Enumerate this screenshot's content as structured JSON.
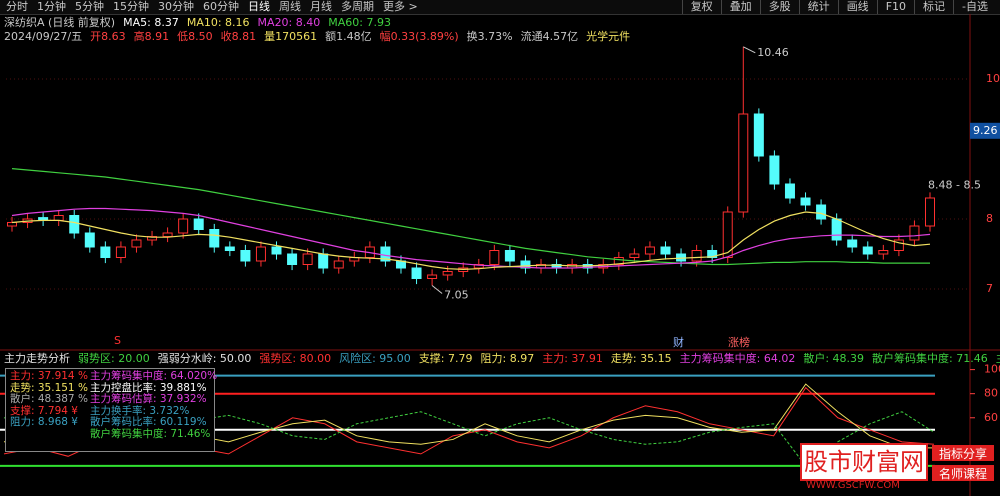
{
  "toolbar": {
    "periods": [
      "分时",
      "1分钟",
      "5分钟",
      "15分钟",
      "30分钟",
      "60分钟",
      "日线",
      "周线",
      "月线",
      "多周期",
      "更多 >"
    ],
    "active": "#ffffff",
    "color": "#c8c8c8",
    "buttons": [
      "复权",
      "叠加",
      "多股",
      "统计",
      "画线",
      "F10",
      "标记",
      "-自选"
    ]
  },
  "header": {
    "items": [
      {
        "text": "深纺织A (日线 前复权)",
        "color": "#c8c8c8"
      },
      {
        "text": "MA5: 8.37",
        "color": "#ffffff"
      },
      {
        "text": "MA10: 8.16",
        "color": "#f0e060"
      },
      {
        "text": "MA20: 8.40",
        "color": "#e040e0"
      },
      {
        "text": "MA60: 7.93",
        "color": "#40d040"
      }
    ]
  },
  "info": {
    "items": [
      {
        "text": "2024/09/27/五",
        "color": "#c8c8c8"
      },
      {
        "text": "开8.63",
        "color": "#ff4040"
      },
      {
        "text": "高8.91",
        "color": "#ff4040"
      },
      {
        "text": "低8.50",
        "color": "#ff4040"
      },
      {
        "text": "收8.81",
        "color": "#ff4040"
      },
      {
        "text": "量170561",
        "color": "#f0e060"
      },
      {
        "text": "额1.48亿",
        "color": "#c8c8c8"
      },
      {
        "text": "幅0.33(3.89%)",
        "color": "#ff4040"
      },
      {
        "text": "换3.73%",
        "color": "#c8c8c8"
      },
      {
        "text": "流通4.57亿",
        "color": "#c8c8c8"
      },
      {
        "text": "光学元件",
        "color": "#f0e060"
      }
    ]
  },
  "events": [
    "S",
    "财",
    "涨榜"
  ],
  "indicator_header": {
    "items": [
      {
        "text": "主力走势分析",
        "color": "#e0e0e0"
      },
      {
        "text": "弱势区: 20.00",
        "color": "#40d040"
      },
      {
        "text": "强弱分水岭: 50.00",
        "color": "#e0e0e0"
      },
      {
        "text": "强势区: 80.00",
        "color": "#ff3030"
      },
      {
        "text": "风险区: 95.00",
        "color": "#3aa0c0"
      },
      {
        "text": "支撑: 7.79",
        "color": "#f0e060"
      },
      {
        "text": "阻力: 8.97",
        "color": "#f0e060"
      },
      {
        "text": "主力: 37.91",
        "color": "#ff3030"
      },
      {
        "text": "走势: 35.15",
        "color": "#f0e060"
      },
      {
        "text": "主力筹码集中度: 64.02",
        "color": "#e040e0"
      },
      {
        "text": "散户: 48.39",
        "color": "#40d040"
      },
      {
        "text": "散户筹码集中度: 71.46",
        "color": "#40d040"
      },
      {
        "text": "主力换手率:",
        "color": "#40d040"
      }
    ]
  },
  "tooltip": {
    "left": [
      {
        "text": "主力: 37.914 %",
        "color": "#ff3030"
      },
      {
        "text": "走势: 35.151 %",
        "color": "#f0e060"
      },
      {
        "text": "散户: 48.387 %",
        "color": "#aaaaaa"
      },
      {
        "text": "支撑: 7.794 ¥",
        "color": "#ff3030"
      },
      {
        "text": "阻力: 8.968 ¥",
        "color": "#3aa0c0"
      }
    ],
    "right": [
      {
        "text": "主力筹码集中度: 64.020%",
        "color": "#e040e0"
      },
      {
        "text": "主力控盘比率: 39.881%",
        "color": "#ffffff"
      },
      {
        "text": "主力筹码估算: 37.932%",
        "color": "#e040e0"
      },
      {
        "text": "主力换手率: 3.732%",
        "color": "#3aa0c0"
      },
      {
        "text": "散户筹码比率: 60.119%",
        "color": "#3aa0c0"
      },
      {
        "text": "散户筹码集中度: 71.46%",
        "color": "#40d040"
      }
    ]
  },
  "watermark": {
    "title": "股市财富网",
    "url": "WWW.GSCFW.COM",
    "tags": [
      "指标分享",
      "名师课程"
    ]
  },
  "chart_data": [
    {
      "type": "candlestick",
      "ylim": [
        6.2,
        10.5
      ],
      "yticks": [
        7,
        8,
        10
      ],
      "grid": true,
      "up_color": "#ff3030",
      "down_color": "#54fcfc",
      "open": [
        7.9,
        7.95,
        8.02,
        7.98,
        8.05,
        7.8,
        7.6,
        7.45,
        7.6,
        7.7,
        7.75,
        7.8,
        8.0,
        7.85,
        7.6,
        7.55,
        7.4,
        7.6,
        7.5,
        7.35,
        7.5,
        7.3,
        7.4,
        7.45,
        7.6,
        7.4,
        7.3,
        7.15,
        7.2,
        7.25,
        7.3,
        7.35,
        7.55,
        7.4,
        7.3,
        7.35,
        7.3,
        7.35,
        7.3,
        7.35,
        7.45,
        7.5,
        7.6,
        7.5,
        7.4,
        7.55,
        7.45,
        8.1,
        9.5,
        8.9,
        8.5,
        8.3,
        8.2,
        8.0,
        7.7,
        7.6,
        7.5,
        7.55,
        7.7,
        7.9
      ],
      "high": [
        8.03,
        8.08,
        8.1,
        8.13,
        8.13,
        7.88,
        7.68,
        7.68,
        7.78,
        7.83,
        7.88,
        8.08,
        8.08,
        7.93,
        7.68,
        7.63,
        7.68,
        7.68,
        7.58,
        7.58,
        7.58,
        7.48,
        7.53,
        7.68,
        7.68,
        7.48,
        7.38,
        7.28,
        7.33,
        7.38,
        7.43,
        7.63,
        7.63,
        7.48,
        7.43,
        7.43,
        7.43,
        7.43,
        7.43,
        7.53,
        7.58,
        7.68,
        7.68,
        7.58,
        7.63,
        7.63,
        8.18,
        10.46,
        9.58,
        8.98,
        8.58,
        8.38,
        8.28,
        8.08,
        7.78,
        7.68,
        7.63,
        7.78,
        7.98,
        8.38
      ],
      "low": [
        7.82,
        7.87,
        7.9,
        7.9,
        7.72,
        7.52,
        7.37,
        7.37,
        7.52,
        7.62,
        7.67,
        7.72,
        7.77,
        7.52,
        7.47,
        7.32,
        7.32,
        7.42,
        7.27,
        7.27,
        7.22,
        7.22,
        7.32,
        7.37,
        7.32,
        7.22,
        7.07,
        7.05,
        7.12,
        7.17,
        7.22,
        7.27,
        7.32,
        7.22,
        7.22,
        7.22,
        7.22,
        7.22,
        7.22,
        7.27,
        7.37,
        7.42,
        7.42,
        7.32,
        7.32,
        7.37,
        7.37,
        8.02,
        8.82,
        8.42,
        8.22,
        8.12,
        7.92,
        7.62,
        7.52,
        7.42,
        7.42,
        7.47,
        7.62,
        7.82
      ],
      "close": [
        7.95,
        8.0,
        7.98,
        8.05,
        7.8,
        7.6,
        7.45,
        7.6,
        7.7,
        7.75,
        7.8,
        8.0,
        7.85,
        7.6,
        7.55,
        7.4,
        7.6,
        7.5,
        7.35,
        7.5,
        7.3,
        7.4,
        7.45,
        7.6,
        7.4,
        7.3,
        7.15,
        7.2,
        7.25,
        7.3,
        7.35,
        7.55,
        7.4,
        7.3,
        7.35,
        7.3,
        7.35,
        7.3,
        7.35,
        7.45,
        7.5,
        7.6,
        7.5,
        7.4,
        7.55,
        7.45,
        8.1,
        9.5,
        8.9,
        8.5,
        8.3,
        8.2,
        8.0,
        7.7,
        7.6,
        7.5,
        7.55,
        7.7,
        7.9,
        8.3
      ],
      "lines": [
        {
          "color": "#40d040",
          "values": [
            8.72,
            8.7,
            8.68,
            8.66,
            8.64,
            8.62,
            8.6,
            8.57,
            8.54,
            8.51,
            8.48,
            8.45,
            8.42,
            8.38,
            8.34,
            8.3,
            8.26,
            8.22,
            8.18,
            8.14,
            8.1,
            8.06,
            8.02,
            7.98,
            7.94,
            7.9,
            7.86,
            7.82,
            7.78,
            7.74,
            7.7,
            7.66,
            7.62,
            7.58,
            7.55,
            7.52,
            7.49,
            7.46,
            7.44,
            7.42,
            7.4,
            7.39,
            7.38,
            7.37,
            7.36,
            7.35,
            7.35,
            7.36,
            7.37,
            7.38,
            7.38,
            7.39,
            7.39,
            7.39,
            7.38,
            7.38,
            7.37,
            7.37,
            7.37,
            7.37
          ]
        },
        {
          "color": "#e040e0",
          "values": [
            8.05,
            8.08,
            8.1,
            8.12,
            8.14,
            8.15,
            8.15,
            8.14,
            8.13,
            8.12,
            8.1,
            8.08,
            8.05,
            8.0,
            7.95,
            7.9,
            7.85,
            7.8,
            7.75,
            7.7,
            7.65,
            7.6,
            7.55,
            7.52,
            7.48,
            7.45,
            7.42,
            7.4,
            7.38,
            7.36,
            7.34,
            7.33,
            7.32,
            7.31,
            7.3,
            7.3,
            7.3,
            7.31,
            7.32,
            7.33,
            7.34,
            7.35,
            7.36,
            7.37,
            7.38,
            7.4,
            7.46,
            7.55,
            7.62,
            7.68,
            7.72,
            7.74,
            7.76,
            7.77,
            7.77,
            7.76,
            7.75,
            7.75,
            7.76,
            7.78
          ]
        },
        {
          "color": "#f0e060",
          "values": [
            7.95,
            7.97,
            7.98,
            7.98,
            7.95,
            7.9,
            7.85,
            7.8,
            7.76,
            7.74,
            7.74,
            7.76,
            7.78,
            7.77,
            7.74,
            7.7,
            7.66,
            7.62,
            7.58,
            7.54,
            7.5,
            7.47,
            7.45,
            7.44,
            7.43,
            7.4,
            7.36,
            7.32,
            7.29,
            7.28,
            7.29,
            7.31,
            7.32,
            7.33,
            7.34,
            7.34,
            7.33,
            7.33,
            7.34,
            7.36,
            7.38,
            7.41,
            7.43,
            7.44,
            7.45,
            7.46,
            7.52,
            7.7,
            7.85,
            7.97,
            8.05,
            8.1,
            8.08,
            8.0,
            7.9,
            7.8,
            7.72,
            7.66,
            7.62,
            7.64
          ]
        }
      ],
      "cursor_value": 9.26,
      "annotation": "8.48 - 8.5"
    },
    {
      "type": "line",
      "ylim": [
        0,
        103
      ],
      "yticks": [
        100,
        80,
        60
      ],
      "reference_lines": [
        {
          "value": 95,
          "color": "#3aa0c0"
        },
        {
          "value": 80,
          "color": "#ff2020"
        },
        {
          "value": 50,
          "color": "#ffffff"
        },
        {
          "value": 20,
          "color": "#30e030"
        }
      ],
      "series": [
        {
          "color": "#ff3030",
          "dash": false,
          "values": [
            30,
            35,
            28,
            40,
            55,
            50,
            35,
            30,
            45,
            60,
            55,
            40,
            35,
            30,
            45,
            50,
            40,
            35,
            45,
            60,
            70,
            65,
            55,
            50,
            45,
            85,
            60,
            50,
            40,
            38
          ]
        },
        {
          "color": "#f0e060",
          "dash": false,
          "values": [
            40,
            45,
            38,
            35,
            50,
            55,
            45,
            40,
            48,
            55,
            58,
            45,
            40,
            38,
            42,
            55,
            45,
            40,
            50,
            58,
            62,
            60,
            52,
            48,
            50,
            88,
            65,
            45,
            35,
            35
          ]
        },
        {
          "color": "#40d040",
          "dash": true,
          "values": [
            60,
            55,
            65,
            62,
            48,
            45,
            58,
            62,
            55,
            45,
            42,
            55,
            60,
            65,
            55,
            45,
            55,
            60,
            50,
            42,
            38,
            40,
            48,
            52,
            55,
            20,
            40,
            55,
            65,
            48
          ]
        }
      ]
    }
  ]
}
